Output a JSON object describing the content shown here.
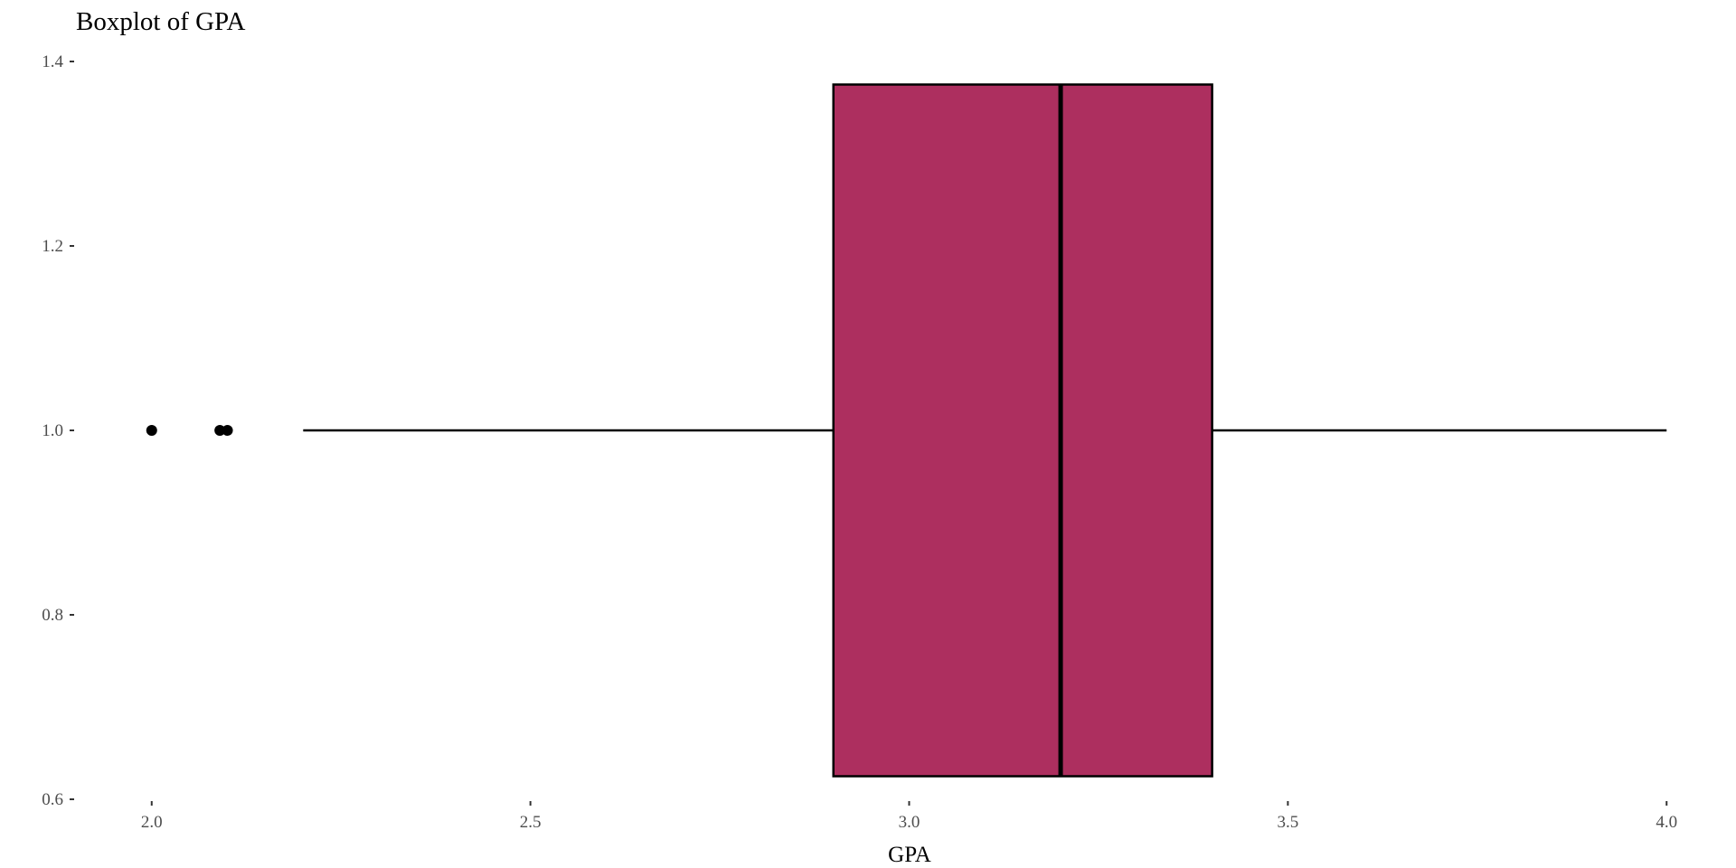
{
  "chart_data": {
    "type": "boxplot",
    "title": "Boxplot of GPA",
    "xlabel": "GPA",
    "ylabel": "",
    "orientation": "horizontal",
    "xlim": [
      1.9,
      4.02
    ],
    "ylim": [
      0.6,
      1.4
    ],
    "x_ticks": [
      2.0,
      2.5,
      3.0,
      3.5,
      4.0
    ],
    "x_tick_labels": [
      "2.0",
      "2.5",
      "3.0",
      "3.5",
      "4.0"
    ],
    "y_ticks": [
      0.6,
      0.8,
      1.0,
      1.2,
      1.4
    ],
    "y_tick_labels": [
      "0.6",
      "0.8",
      "1.0",
      "1.2",
      "1.4"
    ],
    "grid": false,
    "box": {
      "position": 1.0,
      "width": 0.75,
      "whisker_low": 2.2,
      "q1": 2.9,
      "median": 3.2,
      "q3": 3.4,
      "whisker_high": 4.0,
      "outliers": [
        2.0,
        2.09,
        2.1
      ],
      "fill_color": "#AD2F5F",
      "line_color": "#000000"
    }
  }
}
